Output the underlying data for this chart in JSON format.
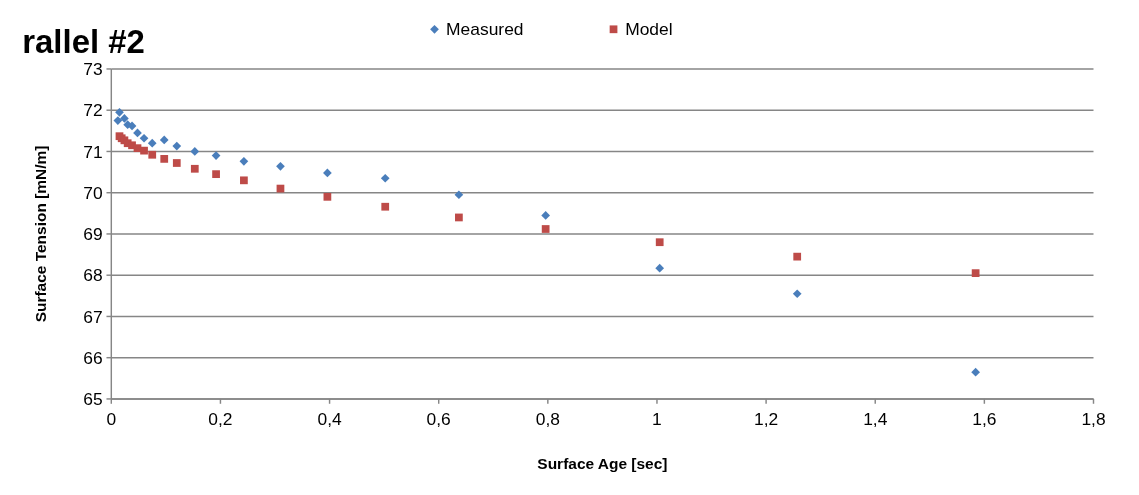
{
  "chart_data": {
    "type": "scatter",
    "title": "rallel #2",
    "xlabel": "Surface Age [sec]",
    "ylabel": "Surface Tension [mN/m]",
    "xlim": [
      0,
      1.8
    ],
    "xticks": [
      0,
      {
        "value": 0.2,
        "label": "0,2"
      },
      {
        "value": 0.4,
        "label": "0,4"
      },
      {
        "value": 0.6,
        "label": "0,6"
      },
      {
        "value": 0.8,
        "label": "0,8"
      },
      1,
      {
        "value": 1.2,
        "label": "1,2"
      },
      {
        "value": 1.4,
        "label": "1,4"
      },
      {
        "value": 1.6,
        "label": "1,6"
      },
      {
        "value": 1.8,
        "label": "1,8"
      }
    ],
    "ylim": [
      65,
      73
    ],
    "yticks": [
      65,
      66,
      67,
      68,
      69,
      70,
      71,
      72,
      73
    ],
    "grid": "y",
    "legend": "top",
    "x": [
      0.012,
      0.015,
      0.019,
      0.024,
      0.03,
      0.038,
      0.048,
      0.06,
      0.075,
      0.097,
      0.12,
      0.153,
      0.192,
      0.243,
      0.31,
      0.396,
      0.502,
      0.637,
      0.796,
      1.005,
      1.257,
      1.584
    ],
    "series": [
      {
        "name": "Measured",
        "color": "#4a7ebb",
        "marker": "diamond",
        "values": [
          71.75,
          71.95,
          null,
          71.8,
          71.65,
          71.62,
          71.45,
          71.32,
          71.2,
          71.28,
          71.13,
          71.0,
          70.9,
          70.76,
          70.64,
          70.48,
          70.35,
          69.95,
          69.45,
          68.17,
          67.55,
          65.65
        ]
      },
      {
        "name": "Model",
        "color": "#be4b48",
        "marker": "square",
        "values": [
          null,
          71.37,
          71.32,
          71.27,
          71.2,
          71.15,
          71.08,
          71.02,
          70.92,
          70.82,
          70.72,
          70.58,
          70.45,
          70.3,
          70.1,
          69.9,
          69.66,
          69.4,
          69.12,
          68.8,
          68.45,
          68.05
        ]
      }
    ]
  }
}
